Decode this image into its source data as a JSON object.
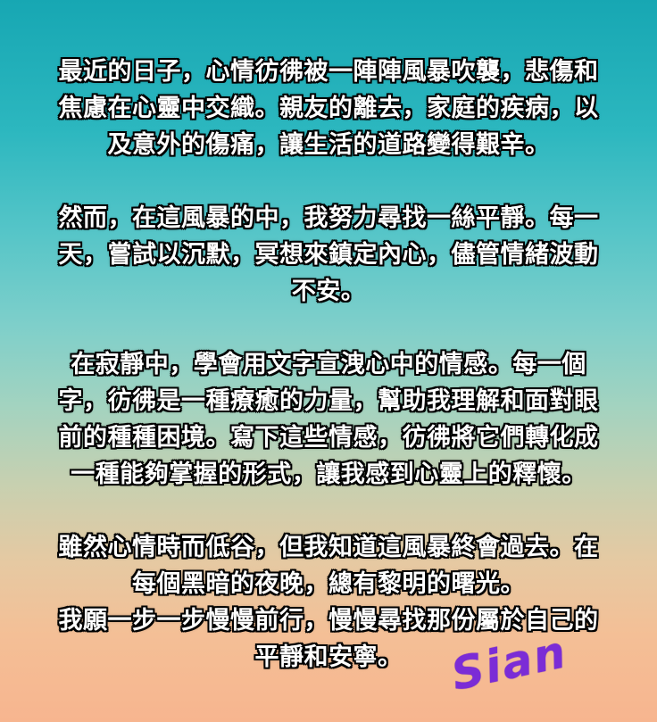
{
  "poem": {
    "paragraphs": [
      [
        "最近的日子，心情彷彿被一陣陣風暴吹襲，悲傷和",
        "焦慮在心靈中交織。親友的離去，家庭的疾病，以",
        "及意外的傷痛，讓生活的道路變得艱辛。"
      ],
      [
        "然而，在這風暴的中，我努力尋找一絲平靜。每一",
        "天，嘗試以沉默，冥想來鎮定內心，儘管情緒波動",
        "不安。"
      ],
      [
        "在寂靜中，學會用文字宣洩心中的情感。每一個",
        "字，彷彿是一種療癒的力量，幫助我理解和面對眼",
        "前的種種困境。寫下這些情感，彷彿將它們轉化成",
        "一種能夠掌握的形式，讓我感到心靈上的釋懷。"
      ],
      [
        "雖然心情時而低谷，但我知道這風暴終會過去。在",
        "每個黑暗的夜晚，總有黎明的曙光。",
        "我願一步一步慢慢前行，慢慢尋找那份屬於自己的",
        "平靜和安寧。"
      ]
    ]
  },
  "signature": "Sian",
  "colors": {
    "text": "#ffffff",
    "outline": "#000000",
    "signature": "#7b2cd6",
    "gradient_top": "#17a7b3",
    "gradient_bottom": "#f7b58f"
  }
}
